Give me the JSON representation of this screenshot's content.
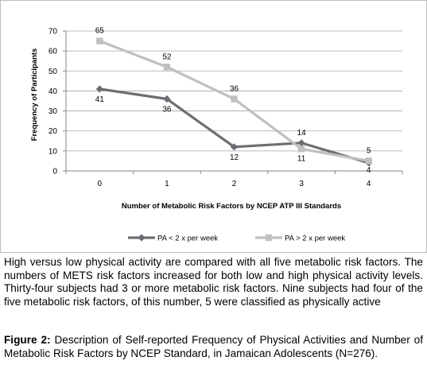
{
  "chart_data": {
    "type": "line",
    "title": "",
    "xlabel": "Number of Metabolic Risk Factors by NCEP ATP III Standards",
    "ylabel": "Frequency of Participants",
    "categories": [
      "0",
      "1",
      "2",
      "3",
      "4"
    ],
    "ylim": [
      0,
      70
    ],
    "yticks": [
      "0",
      "10",
      "20",
      "30",
      "40",
      "50",
      "60",
      "70"
    ],
    "grid": true,
    "legend_position": "bottom",
    "series": [
      {
        "name": "PA < 2 x per week",
        "values": [
          41,
          36,
          12,
          14,
          4
        ],
        "labels": [
          "41",
          "36",
          "12",
          "14",
          "4"
        ],
        "color": "#6d6d73",
        "marker": "diamond"
      },
      {
        "name": "PA > 2 x per week",
        "values": [
          65,
          52,
          36,
          11,
          5
        ],
        "labels": [
          "65",
          "52",
          "36",
          "11",
          "5"
        ],
        "color": "#c0c0c0",
        "marker": "square"
      }
    ]
  },
  "caption": {
    "text": "High versus low physical activity are compared with all five metabolic risk factors.  The numbers of METS risk factors increased for both low and high physical activity levels. Thirty-four subjects had 3 or more metabolic risk factors. Nine subjects had four of the five metabolic risk factors, of this number, 5 were classified as physically active"
  },
  "figure_caption": {
    "label": "Figure 2:",
    "text": " Description of Self-reported Frequency of Physical Activities and Number of Metabolic Risk Factors by NCEP Standard, in Jamaican Adolescents (N=276)."
  }
}
